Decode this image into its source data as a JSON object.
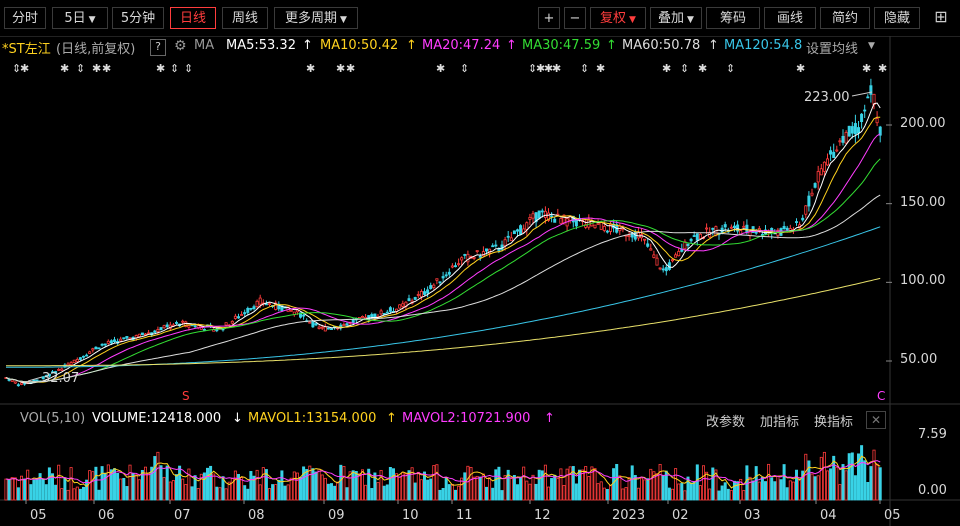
{
  "toolbar": {
    "left": [
      {
        "label": "分时",
        "x": 4,
        "w": 42
      },
      {
        "label": "5日",
        "x": 52,
        "w": 56,
        "caret": true
      },
      {
        "label": "5分钟",
        "x": 112,
        "w": 52
      },
      {
        "label": "日线",
        "x": 170,
        "w": 46,
        "active": true
      },
      {
        "label": "周线",
        "x": 222,
        "w": 46
      },
      {
        "label": "更多周期",
        "x": 274,
        "w": 84,
        "caret": true
      }
    ],
    "right": [
      {
        "label": "+",
        "x": 538,
        "w": 22
      },
      {
        "label": "−",
        "x": 564,
        "w": 22
      },
      {
        "label": "复权",
        "x": 590,
        "w": 56,
        "caret": true,
        "red": true
      },
      {
        "label": "叠加",
        "x": 650,
        "w": 52,
        "caret": true
      },
      {
        "label": "筹码",
        "x": 706,
        "w": 54
      },
      {
        "label": "画线",
        "x": 764,
        "w": 52
      },
      {
        "label": "简约",
        "x": 820,
        "w": 50
      },
      {
        "label": "隐藏",
        "x": 874,
        "w": 46
      }
    ],
    "grid_icon": "⊞"
  },
  "ma_header": {
    "stock": "*ST左江",
    "mode": "(日线,前复权)",
    "help": "?",
    "gear_icon": "⚙",
    "ma_label": "MA",
    "ma5": "MA5:53.32",
    "ma10": "MA10:50.42",
    "ma20": "MA20:47.24",
    "ma30": "MA30:47.59",
    "ma60": "MA60:50.78",
    "ma120": "MA120:54.8",
    "settings": "设置均线",
    "colors": {
      "ma5": "#ffffff",
      "ma10": "#ffd21f",
      "ma20": "#ff3dff",
      "ma30": "#33dd33",
      "ma60": "#dddddd",
      "ma120": "#39c6e8"
    }
  },
  "price_labels": {
    "high": "223.00",
    "low": "32.07",
    "y_ticks": [
      "200.00",
      "150.00",
      "100.00",
      "50.00"
    ]
  },
  "volume": {
    "label": "VOL(5,10)",
    "volume": "VOLUME:12418.000",
    "mavol1": "MAVOL1:13154.000",
    "mavol2": "MAVOL2:10721.900",
    "tools": [
      "改参数",
      "加指标",
      "换指标"
    ],
    "close": "✕",
    "y_ticks": [
      "7.59",
      "0.00"
    ]
  },
  "x_axis": [
    "05",
    "06",
    "07",
    "08",
    "09",
    "10",
    "11",
    "12",
    "2023",
    "02",
    "03",
    "04",
    "05"
  ],
  "event_marks": {
    "s_mark": "S",
    "c_mark": "C"
  }
}
